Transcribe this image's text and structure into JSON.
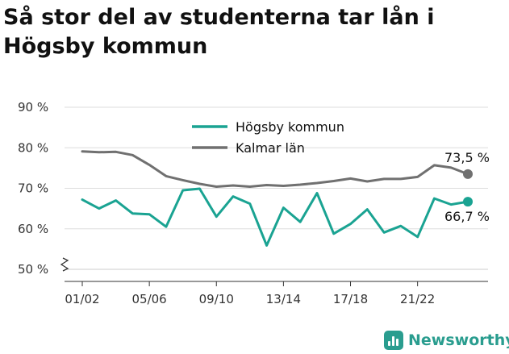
{
  "title": "Så stor del av studenterna tar lån i Högsby kommun",
  "brand": "Newsworthy",
  "colors": {
    "hogsby": "#1aa392",
    "kalmar": "#707070",
    "grid": "#dddddd",
    "axis": "#333333"
  },
  "chart_data": {
    "type": "line",
    "title": "Så stor del av studenterna tar lån i Högsby kommun",
    "x_tick_labels": [
      "01/02",
      "05/06",
      "09/10",
      "13/14",
      "17/18",
      "21/22"
    ],
    "y_tick_labels": [
      "50 %",
      "60 %",
      "70 %",
      "80 %",
      "90 %"
    ],
    "ylim": [
      50,
      90
    ],
    "y_axis_break": true,
    "grid": true,
    "legend_position": "top-center",
    "x": [
      "01/02",
      "02/03",
      "03/04",
      "04/05",
      "05/06",
      "06/07",
      "07/08",
      "08/09",
      "09/10",
      "10/11",
      "11/12",
      "12/13",
      "13/14",
      "14/15",
      "15/16",
      "16/17",
      "17/18",
      "18/19",
      "19/20",
      "20/21",
      "21/22",
      "22/23",
      "23/24",
      "24/25"
    ],
    "series": [
      {
        "name": "Högsby kommun",
        "color": "#1aa392",
        "values": [
          67.2,
          65.0,
          67.0,
          63.8,
          63.6,
          60.5,
          69.5,
          69.9,
          63.0,
          68.0,
          66.2,
          55.9,
          65.2,
          61.7,
          68.8,
          58.8,
          61.2,
          64.8,
          59.1,
          60.7,
          58.0,
          67.5,
          66.0,
          66.7
        ],
        "end_label": "66,7 %"
      },
      {
        "name": "Kalmar län",
        "color": "#707070",
        "values": [
          79.1,
          78.9,
          79.0,
          78.2,
          75.8,
          73.0,
          72.0,
          71.1,
          70.4,
          70.7,
          70.4,
          70.8,
          70.6,
          70.9,
          71.3,
          71.8,
          72.4,
          71.7,
          72.3,
          72.3,
          72.8,
          75.7,
          75.1,
          73.5
        ],
        "end_label": "73,5 %"
      }
    ]
  }
}
